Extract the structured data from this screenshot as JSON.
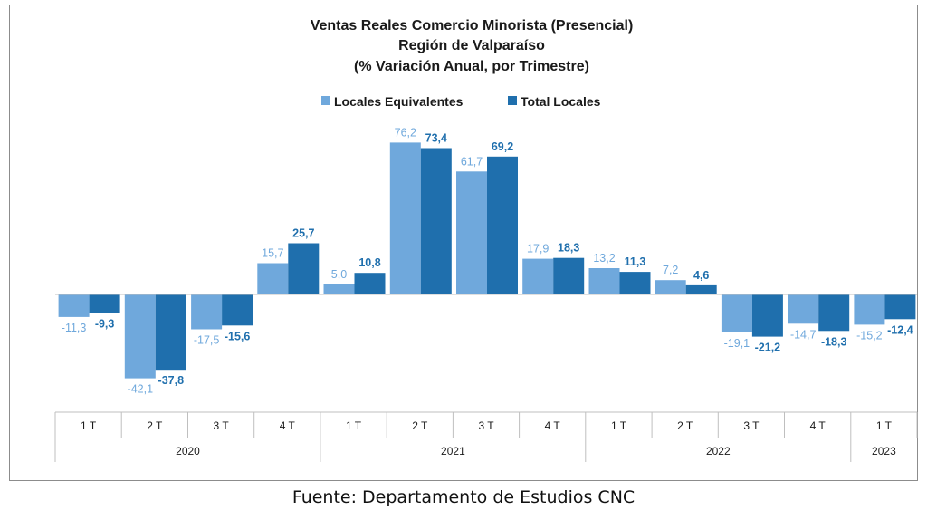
{
  "chart_data": {
    "type": "bar",
    "title": [
      "Ventas Reales Comercio Minorista (Presencial)",
      "Región de Valparaíso",
      "(% Variación Anual, por Trimestre)"
    ],
    "categories": [
      "1 T",
      "2 T",
      "3 T",
      "4 T",
      "1 T",
      "2 T",
      "3 T",
      "4 T",
      "1 T",
      "2 T",
      "3 T",
      "4 T",
      "1 T"
    ],
    "years": [
      {
        "label": "2020",
        "count": 4
      },
      {
        "label": "2021",
        "count": 4
      },
      {
        "label": "2022",
        "count": 4
      },
      {
        "label": "2023",
        "count": 1
      }
    ],
    "series": [
      {
        "name": "Locales Equivalentes",
        "color": "#6fa8dc",
        "values": [
          -11.3,
          -42.1,
          -17.5,
          15.7,
          5.0,
          76.2,
          61.7,
          17.9,
          13.2,
          7.2,
          -19.1,
          -14.7,
          -15.2
        ],
        "labels": [
          "-11,3",
          "-42,1",
          "-17,5",
          "15,7",
          "5,0",
          "76,2",
          "61,7",
          "17,9",
          "13,2",
          "7,2",
          "-19,1",
          "-14,7",
          "-15,2"
        ]
      },
      {
        "name": "Total Locales",
        "color": "#1f6fad",
        "values": [
          -9.3,
          -37.8,
          -15.6,
          25.7,
          10.8,
          73.4,
          69.2,
          18.3,
          11.3,
          4.6,
          -21.2,
          -18.3,
          -12.4
        ],
        "labels": [
          "-9,3",
          "-37,8",
          "-15,6",
          "25,7",
          "10,8",
          "73,4",
          "69,2",
          "18,3",
          "11,3",
          "4,6",
          "-21,2",
          "-18,3",
          "-12,4"
        ]
      }
    ],
    "legend_position": "top",
    "grid": false
  },
  "source": "Fuente: Departamento de Estudios CNC"
}
